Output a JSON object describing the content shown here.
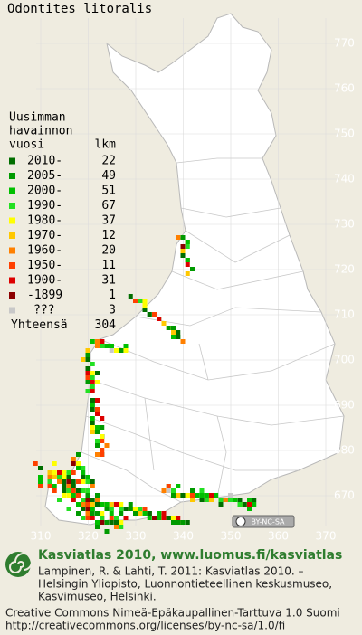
{
  "title": "Odontites litoralis",
  "map": {
    "xticks": [
      310,
      320,
      330,
      340,
      350,
      360,
      370
    ],
    "yticks": [
      770,
      760,
      750,
      740,
      730,
      720,
      710,
      700,
      690,
      680,
      670
    ]
  },
  "legend": {
    "header": [
      "Uusimman",
      "havainnon",
      "vuosi"
    ],
    "count_header": "lkm",
    "entries": [
      {
        "label": "2010-",
        "count": 22,
        "color": "#006e00"
      },
      {
        "label": "2005-",
        "count": 49,
        "color": "#009a00"
      },
      {
        "label": "2000-",
        "count": 51,
        "color": "#00c000"
      },
      {
        "label": "1990-",
        "count": 67,
        "color": "#22e022"
      },
      {
        "label": "1980-",
        "count": 37,
        "color": "#ffff00"
      },
      {
        "label": "1970-",
        "count": 12,
        "color": "#ffc800"
      },
      {
        "label": "1960-",
        "count": 20,
        "color": "#ff8000"
      },
      {
        "label": "1950-",
        "count": 11,
        "color": "#ff4000"
      },
      {
        "label": "1900-",
        "count": 31,
        "color": "#dd0000"
      },
      {
        "label": "-1899",
        "count": 1,
        "color": "#8c0000"
      },
      {
        "label": "???",
        "count": 3,
        "color": "#c8c8c8"
      }
    ],
    "total": {
      "label": "Yhteensä",
      "count": 304
    }
  },
  "license_badge": "BY-NC-SA",
  "footer": {
    "heading": "Kasviatlas 2010, www.luomus.fi/kasviatlas",
    "citation": [
      "Lampinen, R. & Lahti, T. 2011: Kasviatlas 2010. –",
      "Helsingin Yliopisto, Luonnontieteellinen keskusmuseo,",
      "Kasvimuseo, Helsinki."
    ],
    "license": [
      "Creative Commons Nimeä-Epäkaupallinen-Tarttuva 1.0 Suomi",
      "http://creativecommons.org/licenses/by-nc-sa/1.0/fi"
    ]
  }
}
